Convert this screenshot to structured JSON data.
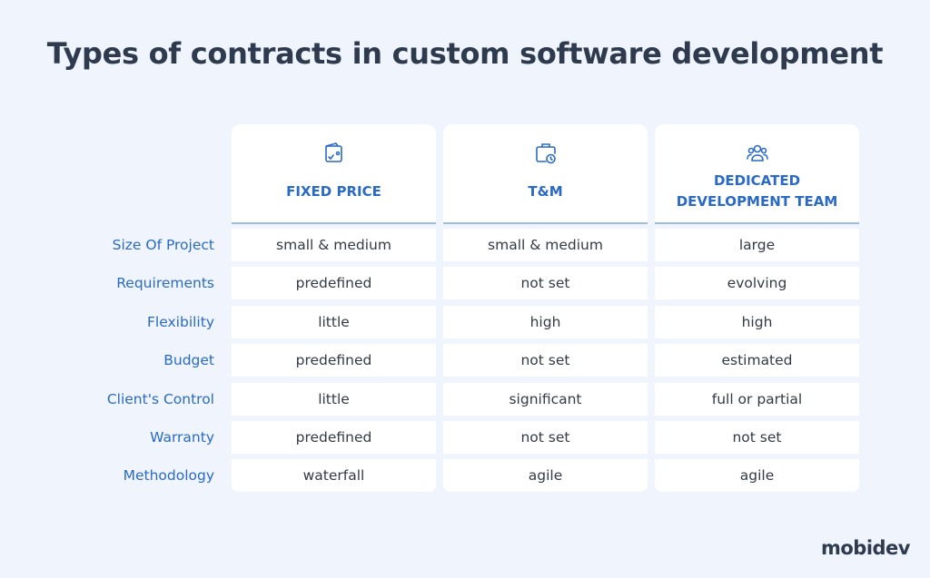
{
  "title": "Types of contracts in custom software development",
  "columns": [
    {
      "label": "FIXED PRICE",
      "icon": "wallet-check-icon"
    },
    {
      "label": "T&M",
      "icon": "briefcase-clock-icon"
    },
    {
      "label": "DEDICATED DEVELOPMENT TEAM",
      "icon": "team-icon"
    }
  ],
  "rows": [
    {
      "label": "Size Of Project",
      "values": [
        "small & medium",
        "small & medium",
        "large"
      ]
    },
    {
      "label": "Requirements",
      "values": [
        "predefined",
        "not set",
        "evolving"
      ]
    },
    {
      "label": "Flexibility",
      "values": [
        "little",
        "high",
        "high"
      ]
    },
    {
      "label": "Budget",
      "values": [
        "predefined",
        "not set",
        "estimated"
      ]
    },
    {
      "label": "Client's Control",
      "values": [
        "little",
        "significant",
        "full or partial"
      ]
    },
    {
      "label": "Warranty",
      "values": [
        "predefined",
        "not set",
        "not set"
      ]
    },
    {
      "label": "Methodology",
      "values": [
        "waterfall",
        "agile",
        "agile"
      ]
    }
  ],
  "logo": "mobidev",
  "colors": {
    "accent": "#2a6ac4",
    "title": "#2e3a4e",
    "background": "#eff4fd"
  }
}
